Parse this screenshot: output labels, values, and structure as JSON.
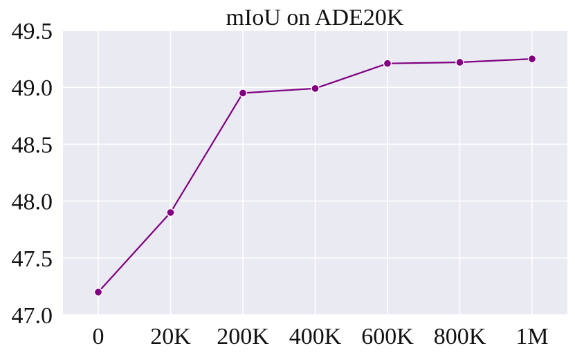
{
  "chart_data": {
    "type": "line",
    "title": "mIoU on ADE20K",
    "xlabel": "",
    "ylabel": "",
    "categories": [
      "0",
      "20K",
      "200K",
      "400K",
      "600K",
      "800K",
      "1M"
    ],
    "series": [
      {
        "name": "",
        "values": [
          47.2,
          47.9,
          48.95,
          48.99,
          49.21,
          49.22,
          49.25
        ],
        "color": "#800080"
      }
    ],
    "y_ticks": [
      "47.0",
      "47.5",
      "48.0",
      "48.5",
      "49.0",
      "49.5"
    ],
    "ylim": [
      47.0,
      49.5
    ],
    "grid": true,
    "background_color": "#eaeaf2",
    "grid_color": "#ffffff",
    "legend": "none"
  }
}
